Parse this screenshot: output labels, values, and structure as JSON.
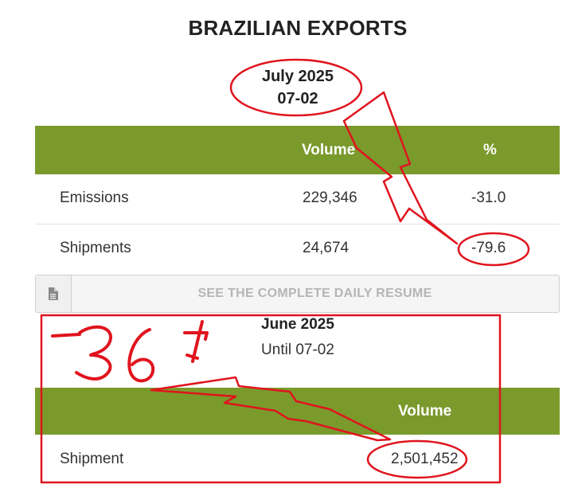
{
  "header": {
    "title": "BRAZILIAN EXPORTS",
    "date_line1": "July 2025",
    "date_line2": "07-02"
  },
  "table1": {
    "columns": [
      "",
      "Volume",
      "%"
    ],
    "rows": [
      {
        "label": "Emissions",
        "volume": "229,346",
        "pct": "-31.0"
      },
      {
        "label": "Shipments",
        "volume": "24,674",
        "pct": "-79.6"
      }
    ]
  },
  "resume_button": {
    "label": "SEE THE COMPLETE DAILY RESUME",
    "icon": "document-icon"
  },
  "june": {
    "title": "June 2025",
    "subtitle": "Until 07-02",
    "columns": [
      "",
      "Volume"
    ],
    "row": {
      "label": "Shipment",
      "volume": "2,501,452"
    }
  },
  "annotations": {
    "handwritten": "-36%",
    "color": "#e0141e"
  },
  "colors": {
    "header_green": "#7a9a2c",
    "annotation_red": "#e0141e"
  }
}
